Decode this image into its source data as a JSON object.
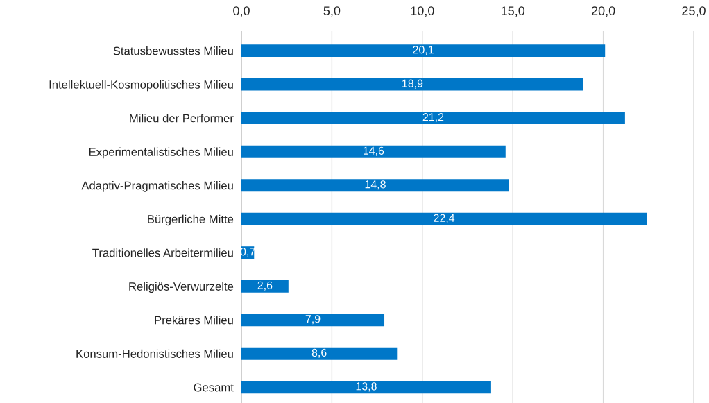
{
  "chart_data": {
    "type": "bar",
    "orientation": "horizontal",
    "categories": [
      "Statusbewusstes Milieu",
      "Intellektuell-Kosmopolitisches Milieu",
      "Milieu der Performer",
      "Experimentalistisches Milieu",
      "Adaptiv-Pragmatisches Milieu",
      "Bürgerliche Mitte",
      "Traditionelles Arbeitermilieu",
      "Religiös-Verwurzelte",
      "Prekäres Milieu",
      "Konsum-Hedonistisches Milieu",
      "Gesamt"
    ],
    "values": [
      20.1,
      18.9,
      21.2,
      14.6,
      14.8,
      22.4,
      0.7,
      2.6,
      7.9,
      8.6,
      13.8
    ],
    "value_labels": [
      "20,1",
      "18,9",
      "21,2",
      "14,6",
      "14,8",
      "22,4",
      "0,7",
      "2,6",
      "7,9",
      "8,6",
      "13,8"
    ],
    "color": "#0077c8",
    "xlim": [
      0,
      25
    ],
    "xticks": [
      {
        "value": 0,
        "label": "0,0"
      },
      {
        "value": 5,
        "label": "5,0"
      },
      {
        "value": 10,
        "label": "10,0"
      },
      {
        "value": 15,
        "label": "15,0"
      },
      {
        "value": 20,
        "label": "20,0"
      },
      {
        "value": 25,
        "label": "25,0"
      }
    ],
    "grid": "x"
  }
}
